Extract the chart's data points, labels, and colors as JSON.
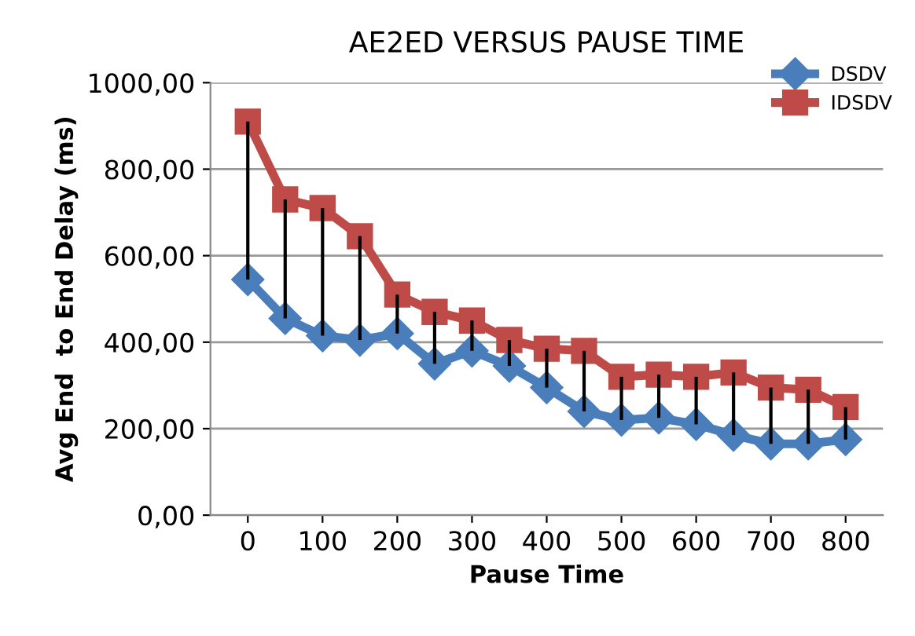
{
  "chart_data": {
    "type": "line",
    "title": "AE2ED VERSUS PAUSE TIME",
    "xlabel": "Pause Time",
    "ylabel": "Avg End  to End Delay (ms)",
    "x": [
      0,
      50,
      100,
      150,
      200,
      250,
      300,
      350,
      400,
      450,
      500,
      550,
      600,
      650,
      700,
      750,
      800
    ],
    "series": [
      {
        "name": "DSDV",
        "color": "#4a7ebb",
        "marker": "diamond",
        "values": [
          545,
          455,
          415,
          405,
          420,
          350,
          380,
          345,
          295,
          240,
          220,
          225,
          210,
          185,
          165,
          165,
          175
        ],
        "errors": [
          [
            545,
            910
          ],
          [
            455,
            730
          ],
          [
            415,
            710
          ],
          [
            405,
            645
          ],
          [
            420,
            510
          ],
          [
            350,
            470
          ],
          [
            380,
            450
          ],
          [
            345,
            405
          ],
          [
            295,
            385
          ],
          [
            240,
            380
          ],
          [
            220,
            320
          ],
          [
            225,
            325
          ],
          [
            210,
            320
          ],
          [
            185,
            330
          ],
          [
            165,
            295
          ],
          [
            165,
            290
          ],
          [
            175,
            250
          ]
        ]
      },
      {
        "name": "IDSDV",
        "color": "#be4b48",
        "marker": "square",
        "values": [
          910,
          730,
          710,
          645,
          510,
          470,
          450,
          405,
          385,
          380,
          320,
          325,
          320,
          330,
          295,
          290,
          250
        ]
      }
    ],
    "xlim": [
      -50,
      850
    ],
    "xticks": [
      0,
      100,
      200,
      300,
      400,
      500,
      600,
      700,
      800
    ],
    "ylim": [
      0,
      1000
    ],
    "yticks": [
      {
        "value": 0,
        "label": "0,00"
      },
      {
        "value": 200,
        "label": "200,00"
      },
      {
        "value": 400,
        "label": "400,00"
      },
      {
        "value": 600,
        "label": "600,00"
      },
      {
        "value": 800,
        "label": "800,00"
      },
      {
        "value": 1000,
        "label": "1000,00"
      }
    ],
    "grid": "y",
    "legend": "top right",
    "line_style": "solid"
  }
}
